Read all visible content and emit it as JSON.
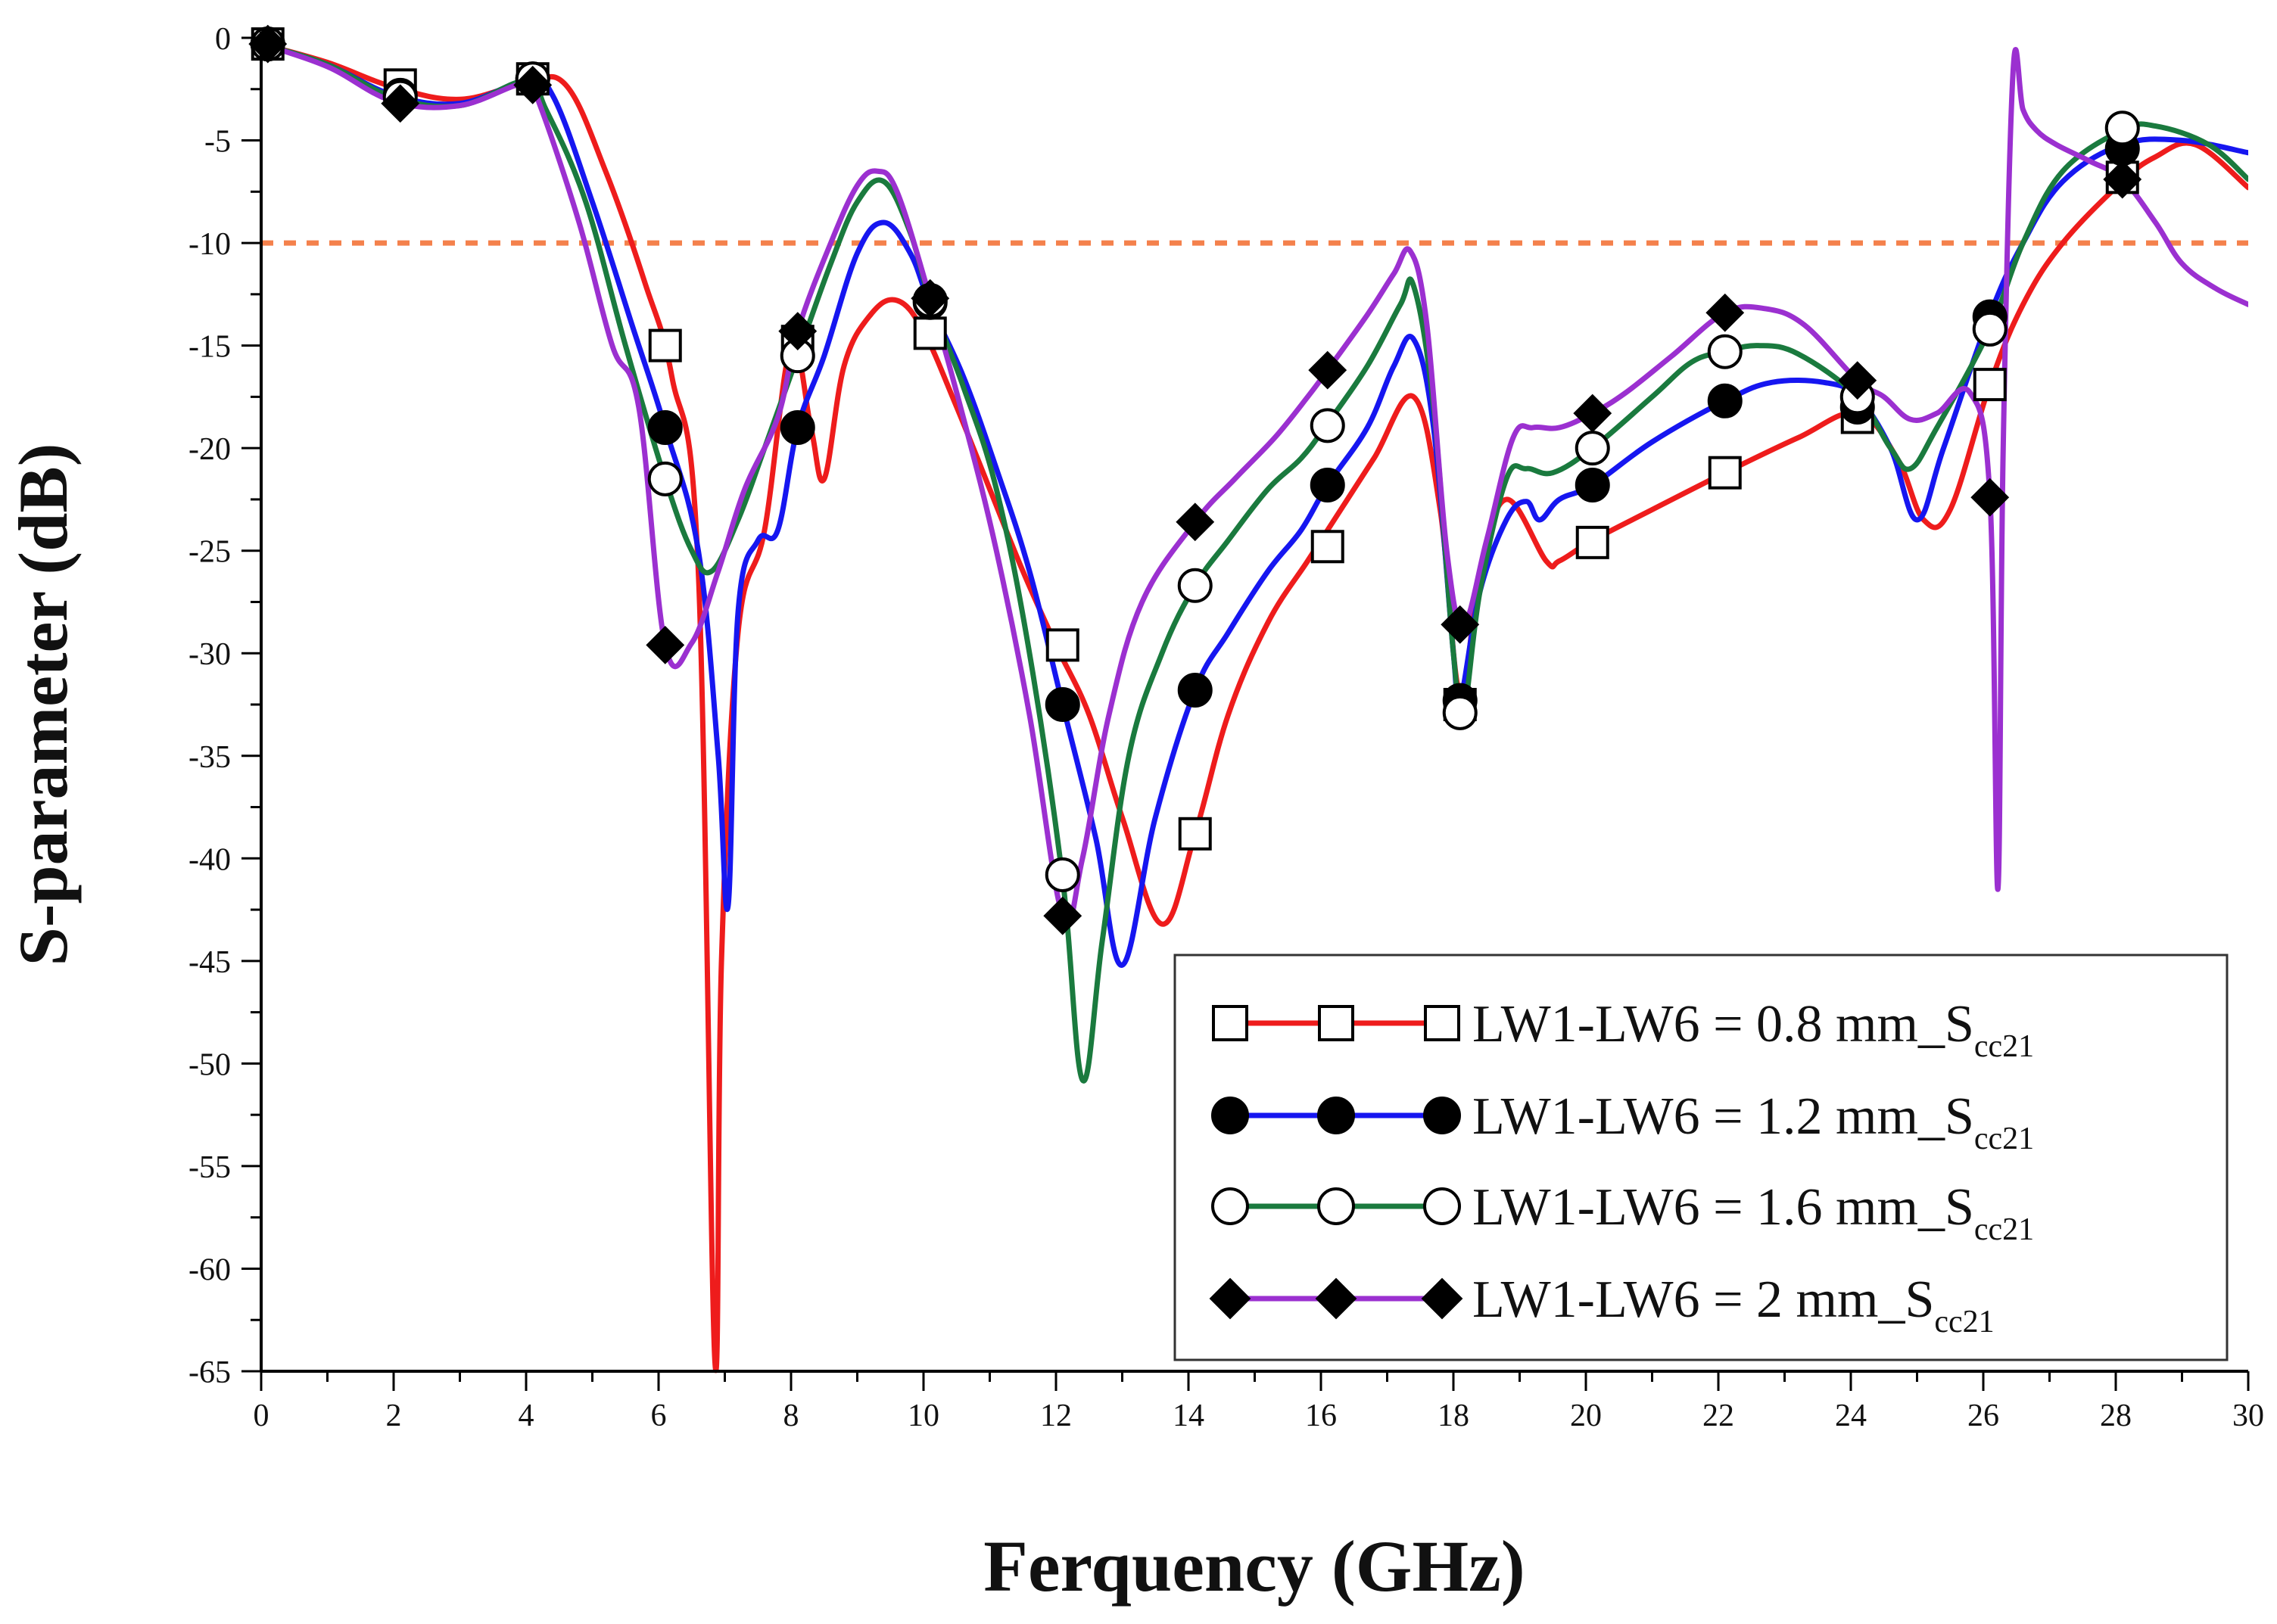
{
  "chart_data": {
    "type": "line",
    "title": "",
    "xlabel": "Ferquency (GHz)",
    "ylabel": "S-parameter (dB)",
    "xlim": [
      0,
      30
    ],
    "ylim": [
      -65,
      0
    ],
    "x_ticks": [
      "0",
      "2",
      "4",
      "6",
      "8",
      "10",
      "12",
      "14",
      "16",
      "18",
      "20",
      "22",
      "24",
      "26",
      "28",
      "30"
    ],
    "y_ticks": [
      "0",
      "-5",
      "-10",
      "-15",
      "-20",
      "-25",
      "-30",
      "-35",
      "-40",
      "-45",
      "-50",
      "-55",
      "-60",
      "-65"
    ],
    "reference_line": {
      "y": -10,
      "color": "#f4814c",
      "style": "dashed"
    },
    "series": [
      {
        "name": "LW1-LW6 = 0.8 mm_S",
        "name_sub": "cc21",
        "color": "#ee1c1c",
        "marker": "open-square",
        "x": [
          0,
          1,
          2,
          3,
          4,
          4.6,
          5.2,
          5.8,
          6.2,
          6.6,
          6.85,
          6.95,
          7.2,
          7.6,
          8.0,
          8.3,
          8.5,
          8.8,
          9.2,
          9.6,
          10,
          10.5,
          11,
          11.5,
          12,
          12.5,
          13,
          13.6,
          14.1,
          14.6,
          15.2,
          15.8,
          16.2,
          16.8,
          17.4,
          17.8,
          18.1,
          18.4,
          18.8,
          19.4,
          19.6,
          20.1,
          21,
          22.1,
          23.2,
          24.1,
          24.7,
          25.1,
          25.5,
          26.1,
          26.6,
          27.2,
          28.1,
          28.6,
          29.2,
          30
        ],
        "y": [
          -0.3,
          -1.2,
          -2.4,
          -3.0,
          -2.2,
          -2.3,
          -6.5,
          -12,
          -16.5,
          -26,
          -64.5,
          -45,
          -29,
          -24,
          -15,
          -19,
          -21.5,
          -16,
          -13.5,
          -12.8,
          -14.3,
          -18,
          -22,
          -26,
          -29.6,
          -33,
          -38,
          -43.2,
          -38.8,
          -33,
          -28.5,
          -25.5,
          -23.5,
          -20.5,
          -17.5,
          -23,
          -32,
          -26,
          -22.5,
          -25.5,
          -25.5,
          -24.5,
          -23,
          -21.2,
          -19.5,
          -18.3,
          -20.5,
          -23.5,
          -23,
          -16.9,
          -13,
          -10,
          -7,
          -5.8,
          -5.2,
          -7.3
        ],
        "markers_x": [
          0.1,
          2.1,
          4.1,
          6.1,
          8.1,
          10.1,
          12.1,
          14.1,
          16.1,
          18.1,
          20.1,
          22.1,
          24.1,
          26.1,
          28.1
        ],
        "markers_y": [
          -0.3,
          -2.3,
          -2.0,
          -15.0,
          -14.8,
          -14.4,
          -29.6,
          -38.8,
          -24.8,
          -32.5,
          -24.6,
          -21.2,
          -18.5,
          -16.9,
          -6.8
        ]
      },
      {
        "name": "LW1-LW6 = 1.2 mm_S",
        "name_sub": "cc21",
        "color": "#1616f0",
        "marker": "filled-circle",
        "x": [
          0,
          1,
          2,
          3,
          4,
          4.4,
          5,
          5.6,
          6.1,
          6.6,
          6.9,
          7.05,
          7.2,
          7.5,
          7.8,
          8.1,
          8.5,
          9,
          9.4,
          9.8,
          10.1,
          10.6,
          11.1,
          11.6,
          12.1,
          12.6,
          13.0,
          13.5,
          14.1,
          14.6,
          15.2,
          15.7,
          16.1,
          16.7,
          17.1,
          17.4,
          17.7,
          18.0,
          18.1,
          18.4,
          18.8,
          19.1,
          19.3,
          19.6,
          20.1,
          21,
          22.1,
          22.8,
          23.6,
          24.1,
          24.6,
          25.0,
          25.4,
          26.1,
          26.6,
          27.2,
          28.1,
          29,
          30
        ],
        "y": [
          -0.3,
          -1.3,
          -2.8,
          -3.2,
          -2.1,
          -2.8,
          -8,
          -14,
          -19,
          -25,
          -35,
          -42.3,
          -28,
          -24.5,
          -24,
          -19,
          -15.5,
          -10.5,
          -9.0,
          -10.5,
          -13,
          -16.5,
          -21,
          -26,
          -32.5,
          -39,
          -45.2,
          -38,
          -31.8,
          -29,
          -26,
          -24,
          -21.8,
          -19,
          -16,
          -14.7,
          -19,
          -30,
          -32.3,
          -27,
          -23.5,
          -22.6,
          -23.5,
          -22.5,
          -21.8,
          -19.7,
          -17.7,
          -16.8,
          -16.8,
          -17.5,
          -20,
          -23.5,
          -20,
          -13.5,
          -10,
          -7,
          -5.2,
          -5.0,
          -5.6
        ],
        "markers_x": [
          0.1,
          2.1,
          4.1,
          6.1,
          8.1,
          10.1,
          12.1,
          14.1,
          16.1,
          18.1,
          20.1,
          22.1,
          24.1,
          26.1,
          28.1
        ],
        "markers_y": [
          -0.3,
          -2.8,
          -2.0,
          -19.0,
          -19.0,
          -12.9,
          -32.5,
          -31.8,
          -21.8,
          -32.3,
          -21.8,
          -17.7,
          -18.0,
          -13.6,
          -5.4
        ]
      },
      {
        "name": "LW1-LW6 = 1.6 mm_S",
        "name_sub": "cc21",
        "color": "#1a7a3e",
        "marker": "open-circle",
        "x": [
          0,
          1,
          2,
          3,
          4,
          4.3,
          4.9,
          5.5,
          6.1,
          6.5,
          6.8,
          7.2,
          7.6,
          8.1,
          8.6,
          9.0,
          9.4,
          9.8,
          10.1,
          10.6,
          11.1,
          11.6,
          12.1,
          12.4,
          12.7,
          13.1,
          13.6,
          14.1,
          14.6,
          15.2,
          15.7,
          16.1,
          16.7,
          17.2,
          17.4,
          17.7,
          18.0,
          18.15,
          18.4,
          18.8,
          19.1,
          19.5,
          20.1,
          21,
          21.6,
          22.1,
          22.6,
          23.2,
          24.1,
          24.6,
          24.9,
          25.3,
          26.1,
          26.6,
          27.2,
          28.1,
          28.6,
          29.4,
          30
        ],
        "y": [
          -0.3,
          -1.3,
          -2.9,
          -3.3,
          -2.1,
          -3.5,
          -8,
          -15,
          -21.5,
          -25,
          -26,
          -23.5,
          -20,
          -15.5,
          -11,
          -8,
          -7.0,
          -9.5,
          -12.8,
          -17,
          -22,
          -30,
          -41,
          -50.8,
          -44,
          -35,
          -30,
          -26.7,
          -24.5,
          -22,
          -20.5,
          -18.8,
          -16,
          -13,
          -12.1,
          -18,
          -30,
          -32.9,
          -27,
          -21.5,
          -21,
          -21.2,
          -20,
          -17.5,
          -15.8,
          -15.3,
          -15,
          -15.4,
          -17.5,
          -20,
          -21,
          -19,
          -14.2,
          -10,
          -6.5,
          -4.5,
          -4.3,
          -5.2,
          -6.9
        ],
        "markers_x": [
          0.1,
          2.1,
          4.1,
          6.1,
          8.1,
          10.1,
          12.1,
          14.1,
          16.1,
          18.1,
          20.1,
          22.1,
          24.1,
          26.1,
          28.1
        ],
        "markers_y": [
          -0.3,
          -2.9,
          -2.0,
          -21.5,
          -15.5,
          -12.8,
          -40.8,
          -26.7,
          -18.9,
          -32.9,
          -20.0,
          -15.3,
          -17.5,
          -14.2,
          -4.4
        ]
      },
      {
        "name": "LW1-LW6 = 2 mm_S",
        "name_sub": "cc21",
        "color": "#9b30d0",
        "marker": "filled-diamond",
        "x": [
          0,
          1,
          2,
          3,
          4,
          4.2,
          4.8,
          5.3,
          5.7,
          6.1,
          6.5,
          6.9,
          7.3,
          7.8,
          8.1,
          8.6,
          9.0,
          9.3,
          9.6,
          10.1,
          10.6,
          11.1,
          11.6,
          12.1,
          12.4,
          12.8,
          13.3,
          14.1,
          14.7,
          15.3,
          15.8,
          16.1,
          16.7,
          17.1,
          17.35,
          17.6,
          17.9,
          18.15,
          18.5,
          18.9,
          19.2,
          19.6,
          20.1,
          20.6,
          21.3,
          22.1,
          22.7,
          23.3,
          24.1,
          24.5,
          24.9,
          25.3,
          25.8,
          26.1,
          26.22,
          26.3,
          26.45,
          26.6,
          26.8,
          27.1,
          27.6,
          28.1,
          28.6,
          29.0,
          29.5,
          30
        ],
        "y": [
          -0.3,
          -1.4,
          -3.1,
          -3.3,
          -2.2,
          -3.2,
          -9,
          -15,
          -18,
          -29.6,
          -29.5,
          -26,
          -22,
          -18.5,
          -14.3,
          -10,
          -7.2,
          -6.5,
          -7.5,
          -12.7,
          -18.5,
          -25,
          -33,
          -42.8,
          -40,
          -33,
          -27.5,
          -23.6,
          -21.5,
          -19.5,
          -17.5,
          -16.2,
          -13.5,
          -11.5,
          -10.4,
          -14,
          -25,
          -28.6,
          -24.5,
          -19.5,
          -19.0,
          -19.0,
          -18.3,
          -17.3,
          -15.5,
          -13.4,
          -13.2,
          -14,
          -16.7,
          -17.5,
          -18.6,
          -18.3,
          -17.3,
          -22.4,
          -41.5,
          -20,
          -1.6,
          -3.5,
          -4.5,
          -5.2,
          -6.0,
          -6.9,
          -9,
          -11,
          -12.2,
          -13.0
        ],
        "markers_x": [
          0.1,
          2.1,
          4.1,
          6.1,
          8.1,
          10.1,
          12.1,
          14.1,
          16.1,
          18.1,
          20.1,
          22.1,
          24.1,
          26.1,
          28.1
        ],
        "markers_y": [
          -0.3,
          -3.2,
          -2.3,
          -29.6,
          -14.3,
          -12.7,
          -42.8,
          -23.6,
          -16.2,
          -28.6,
          -18.3,
          -13.4,
          -16.7,
          -22.4,
          -6.9
        ]
      }
    ],
    "legend": {
      "placement": "bottom-right"
    }
  }
}
